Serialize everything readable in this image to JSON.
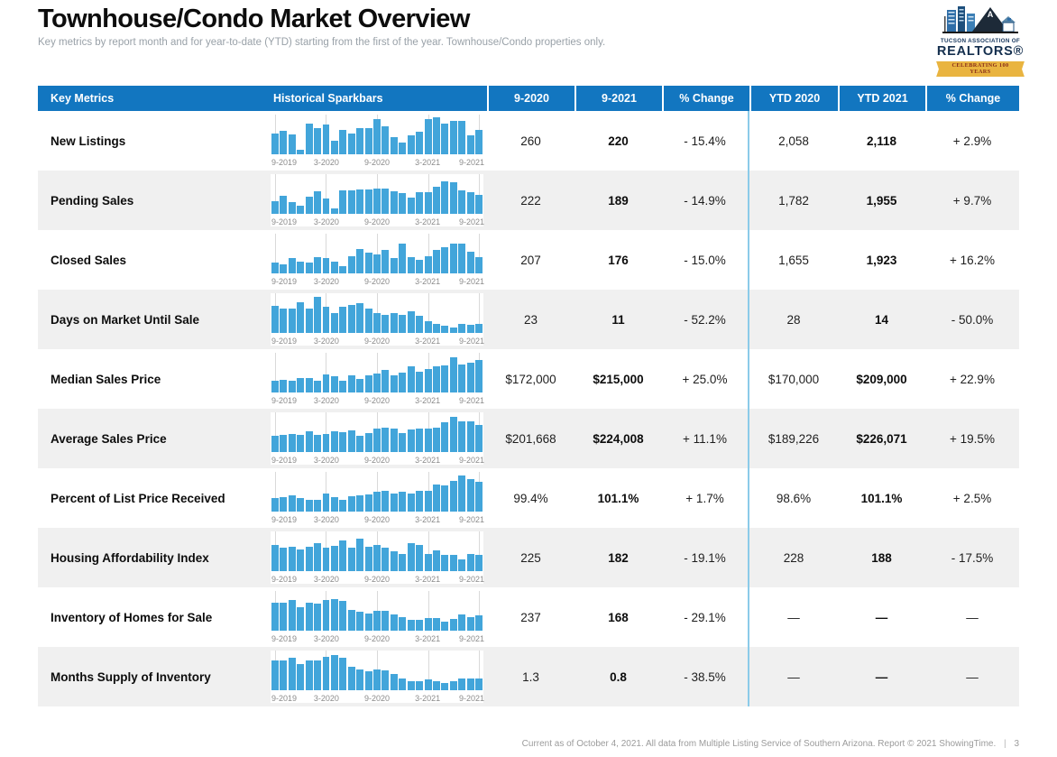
{
  "page": {
    "title": "Townhouse/Condo Market Overview",
    "subtitle": "Key metrics by report month and for year-to-date (YTD) starting from the first of the year. Townhouse/Condo properties only.",
    "footer_text": "Current as of October 4, 2021. All data from Multiple Listing Service of Southern Arizona. Report © 2021 ShowingTime.",
    "footer_pipe": "|",
    "page_number": "3"
  },
  "logo": {
    "org_line": "TUCSON ASSOCIATION OF",
    "realtors_line": "REALTORS®",
    "banner": "CELEBRATING 100 YEARS"
  },
  "colors": {
    "header_blue": "#1276c0",
    "sparkbar_blue": "#42a5da",
    "divider_blue": "#8bcbe9",
    "row_alt_gray": "#f0f0f0",
    "subtitle_gray": "#99a1a8",
    "ribbon_gold": "#e9b440"
  },
  "table": {
    "headers": [
      "Key Metrics",
      "Historical Sparkbars",
      "9-2020",
      "9-2021",
      "% Change",
      "YTD 2020",
      "YTD 2021",
      "% Change"
    ],
    "rows": [
      {
        "metric": "New Listings",
        "m2020": "260",
        "m2021": "220",
        "pct": "- 15.4%",
        "ytd2020": "2,058",
        "ytd2021": "2,118",
        "ytd_pct": "+ 2.9%"
      },
      {
        "metric": "Pending Sales",
        "m2020": "222",
        "m2021": "189",
        "pct": "- 14.9%",
        "ytd2020": "1,782",
        "ytd2021": "1,955",
        "ytd_pct": "+ 9.7%"
      },
      {
        "metric": "Closed Sales",
        "m2020": "207",
        "m2021": "176",
        "pct": "- 15.0%",
        "ytd2020": "1,655",
        "ytd2021": "1,923",
        "ytd_pct": "+ 16.2%"
      },
      {
        "metric": "Days on Market Until Sale",
        "m2020": "23",
        "m2021": "11",
        "pct": "- 52.2%",
        "ytd2020": "28",
        "ytd2021": "14",
        "ytd_pct": "- 50.0%"
      },
      {
        "metric": "Median Sales Price",
        "m2020": "$172,000",
        "m2021": "$215,000",
        "pct": "+ 25.0%",
        "ytd2020": "$170,000",
        "ytd2021": "$209,000",
        "ytd_pct": "+ 22.9%"
      },
      {
        "metric": "Average Sales Price",
        "m2020": "$201,668",
        "m2021": "$224,008",
        "pct": "+ 11.1%",
        "ytd2020": "$189,226",
        "ytd2021": "$226,071",
        "ytd_pct": "+ 19.5%"
      },
      {
        "metric": "Percent of List Price Received",
        "m2020": "99.4%",
        "m2021": "101.1%",
        "pct": "+ 1.7%",
        "ytd2020": "98.6%",
        "ytd2021": "101.1%",
        "ytd_pct": "+ 2.5%"
      },
      {
        "metric": "Housing Affordability Index",
        "m2020": "225",
        "m2021": "182",
        "pct": "- 19.1%",
        "ytd2020": "228",
        "ytd2021": "188",
        "ytd_pct": "- 17.5%"
      },
      {
        "metric": "Inventory of Homes for Sale",
        "m2020": "237",
        "m2021": "168",
        "pct": "- 29.1%",
        "ytd2020": "—",
        "ytd2021": "—",
        "ytd_pct": "—"
      },
      {
        "metric": "Months Supply of Inventory",
        "m2020": "1.3",
        "m2021": "0.8",
        "pct": "- 38.5%",
        "ytd2020": "—",
        "ytd2021": "—",
        "ytd_pct": "—"
      }
    ]
  },
  "chart_data": {
    "type": "bar",
    "note": "Monthly sparkbars, Sep 2019 through Sep 2021; values are relative heights (0-100) estimated from pixels, no y-axis shown",
    "axis_labels": [
      "9-2019",
      "3-2020",
      "9-2020",
      "3-2021",
      "9-2021"
    ],
    "axis_tick_indices": [
      0,
      6,
      12,
      18,
      24
    ],
    "series": [
      {
        "name": "New Listings",
        "values": [
          55,
          63,
          52,
          13,
          80,
          70,
          78,
          35,
          65,
          55,
          70,
          70,
          92,
          75,
          45,
          30,
          50,
          60,
          93,
          98,
          80,
          88,
          88,
          50,
          65
        ]
      },
      {
        "name": "Pending Sales",
        "values": [
          33,
          48,
          32,
          22,
          45,
          60,
          40,
          15,
          62,
          62,
          64,
          65,
          66,
          66,
          60,
          54,
          42,
          56,
          58,
          72,
          85,
          83,
          63,
          57,
          50
        ]
      },
      {
        "name": "Closed Sales",
        "values": [
          28,
          24,
          40,
          30,
          28,
          42,
          40,
          30,
          20,
          45,
          65,
          55,
          50,
          62,
          40,
          78,
          42,
          35,
          45,
          62,
          68,
          78,
          78,
          58,
          42
        ]
      },
      {
        "name": "Days on Market Until Sale",
        "values": [
          72,
          65,
          65,
          82,
          65,
          95,
          70,
          52,
          68,
          75,
          78,
          65,
          52,
          48,
          52,
          48,
          58,
          45,
          32,
          25,
          18,
          15,
          25,
          22,
          25
        ]
      },
      {
        "name": "Median Sales Price",
        "values": [
          30,
          33,
          30,
          38,
          38,
          32,
          48,
          42,
          32,
          45,
          35,
          45,
          50,
          60,
          45,
          52,
          70,
          55,
          62,
          70,
          72,
          92,
          75,
          78,
          85
        ]
      },
      {
        "name": "Average Sales Price",
        "values": [
          42,
          45,
          48,
          45,
          55,
          45,
          48,
          55,
          52,
          58,
          42,
          50,
          62,
          65,
          62,
          50,
          60,
          62,
          62,
          65,
          78,
          92,
          80,
          82,
          72
        ]
      },
      {
        "name": "Percent of List Price Received",
        "values": [
          35,
          38,
          42,
          35,
          32,
          32,
          48,
          38,
          32,
          40,
          42,
          45,
          52,
          55,
          48,
          52,
          48,
          55,
          55,
          72,
          68,
          82,
          95,
          85,
          78
        ]
      },
      {
        "name": "Housing Affordability Index",
        "values": [
          70,
          63,
          65,
          58,
          65,
          73,
          63,
          67,
          80,
          63,
          85,
          65,
          70,
          63,
          52,
          45,
          75,
          68,
          45,
          55,
          43,
          43,
          32,
          45,
          42
        ]
      },
      {
        "name": "Inventory of Homes for Sale",
        "values": [
          75,
          75,
          82,
          62,
          75,
          72,
          82,
          83,
          78,
          55,
          50,
          45,
          52,
          52,
          42,
          35,
          28,
          28,
          33,
          33,
          25,
          32,
          42,
          36,
          40
        ]
      },
      {
        "name": "Months Supply of Inventory",
        "values": [
          78,
          78,
          85,
          70,
          78,
          78,
          88,
          92,
          85,
          62,
          55,
          50,
          55,
          52,
          42,
          32,
          25,
          25,
          28,
          25,
          18,
          25,
          32,
          30,
          32
        ]
      }
    ]
  }
}
